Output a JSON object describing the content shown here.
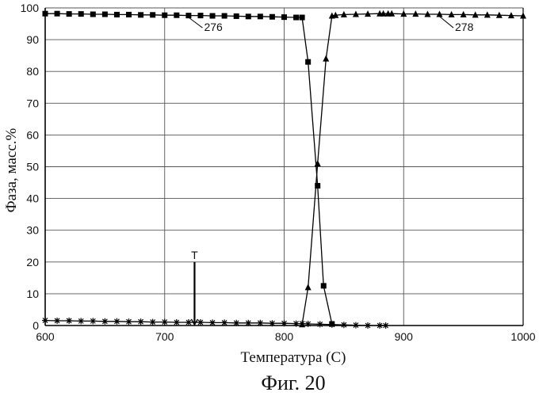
{
  "chart_data": {
    "type": "line",
    "title": "",
    "caption": "Фиг. 20",
    "xlabel": "Температура (С)",
    "ylabel": "Фаза, масс.%",
    "xlim": [
      600,
      1000
    ],
    "ylim": [
      0,
      100
    ],
    "xticks": [
      "600",
      "700",
      "800",
      "900",
      "1000"
    ],
    "yticks": [
      "0",
      "10",
      "20",
      "30",
      "40",
      "50",
      "60",
      "70",
      "80",
      "90",
      "100"
    ],
    "grid": true,
    "series": [
      {
        "name": "276",
        "marker": "square",
        "x": [
          600,
          610,
          620,
          630,
          640,
          650,
          660,
          670,
          680,
          690,
          700,
          710,
          720,
          730,
          740,
          750,
          760,
          770,
          780,
          790,
          800,
          810,
          815,
          820,
          828,
          833,
          840
        ],
        "y": [
          98.2,
          98.2,
          98.1,
          98.1,
          98.0,
          98.0,
          97.9,
          97.9,
          97.8,
          97.8,
          97.7,
          97.7,
          97.6,
          97.6,
          97.5,
          97.5,
          97.4,
          97.3,
          97.3,
          97.2,
          97.1,
          97.0,
          97.0,
          83.0,
          44.0,
          12.5,
          0.5
        ]
      },
      {
        "name": "278",
        "marker": "triangle",
        "x": [
          815,
          820,
          828,
          835,
          840,
          843,
          850,
          860,
          870,
          880,
          883,
          887,
          890,
          900,
          910,
          920,
          930,
          940,
          950,
          960,
          970,
          980,
          990,
          1000
        ],
        "y": [
          0.3,
          12.0,
          51.0,
          84.0,
          97.5,
          97.7,
          97.9,
          98.0,
          98.1,
          98.2,
          98.2,
          98.2,
          98.2,
          98.1,
          98.1,
          98.0,
          98.0,
          97.9,
          97.9,
          97.8,
          97.8,
          97.7,
          97.6,
          97.5
        ]
      },
      {
        "name": "",
        "marker": "star",
        "x": [
          600,
          610,
          620,
          630,
          640,
          650,
          660,
          670,
          680,
          690,
          700,
          710,
          720,
          730,
          740,
          750,
          760,
          770,
          780,
          790,
          800,
          810,
          815,
          820,
          830,
          840,
          850,
          860,
          870,
          880,
          885
        ],
        "y": [
          1.6,
          1.5,
          1.5,
          1.4,
          1.4,
          1.3,
          1.3,
          1.2,
          1.2,
          1.1,
          1.1,
          1.0,
          1.0,
          1.0,
          0.9,
          0.9,
          0.8,
          0.8,
          0.8,
          0.7,
          0.7,
          0.6,
          0.6,
          0.5,
          0.4,
          0.3,
          0.2,
          0.1,
          0.0,
          0.0,
          0.0
        ]
      }
    ],
    "annotations": [
      {
        "text": "T",
        "x": 725,
        "y_top": 20,
        "y_bottom": 0
      },
      {
        "text": "276",
        "x": 725,
        "y": 94,
        "points_to_series": "276"
      },
      {
        "text": "278",
        "x": 935,
        "y": 94,
        "points_to_series": "278"
      }
    ]
  }
}
